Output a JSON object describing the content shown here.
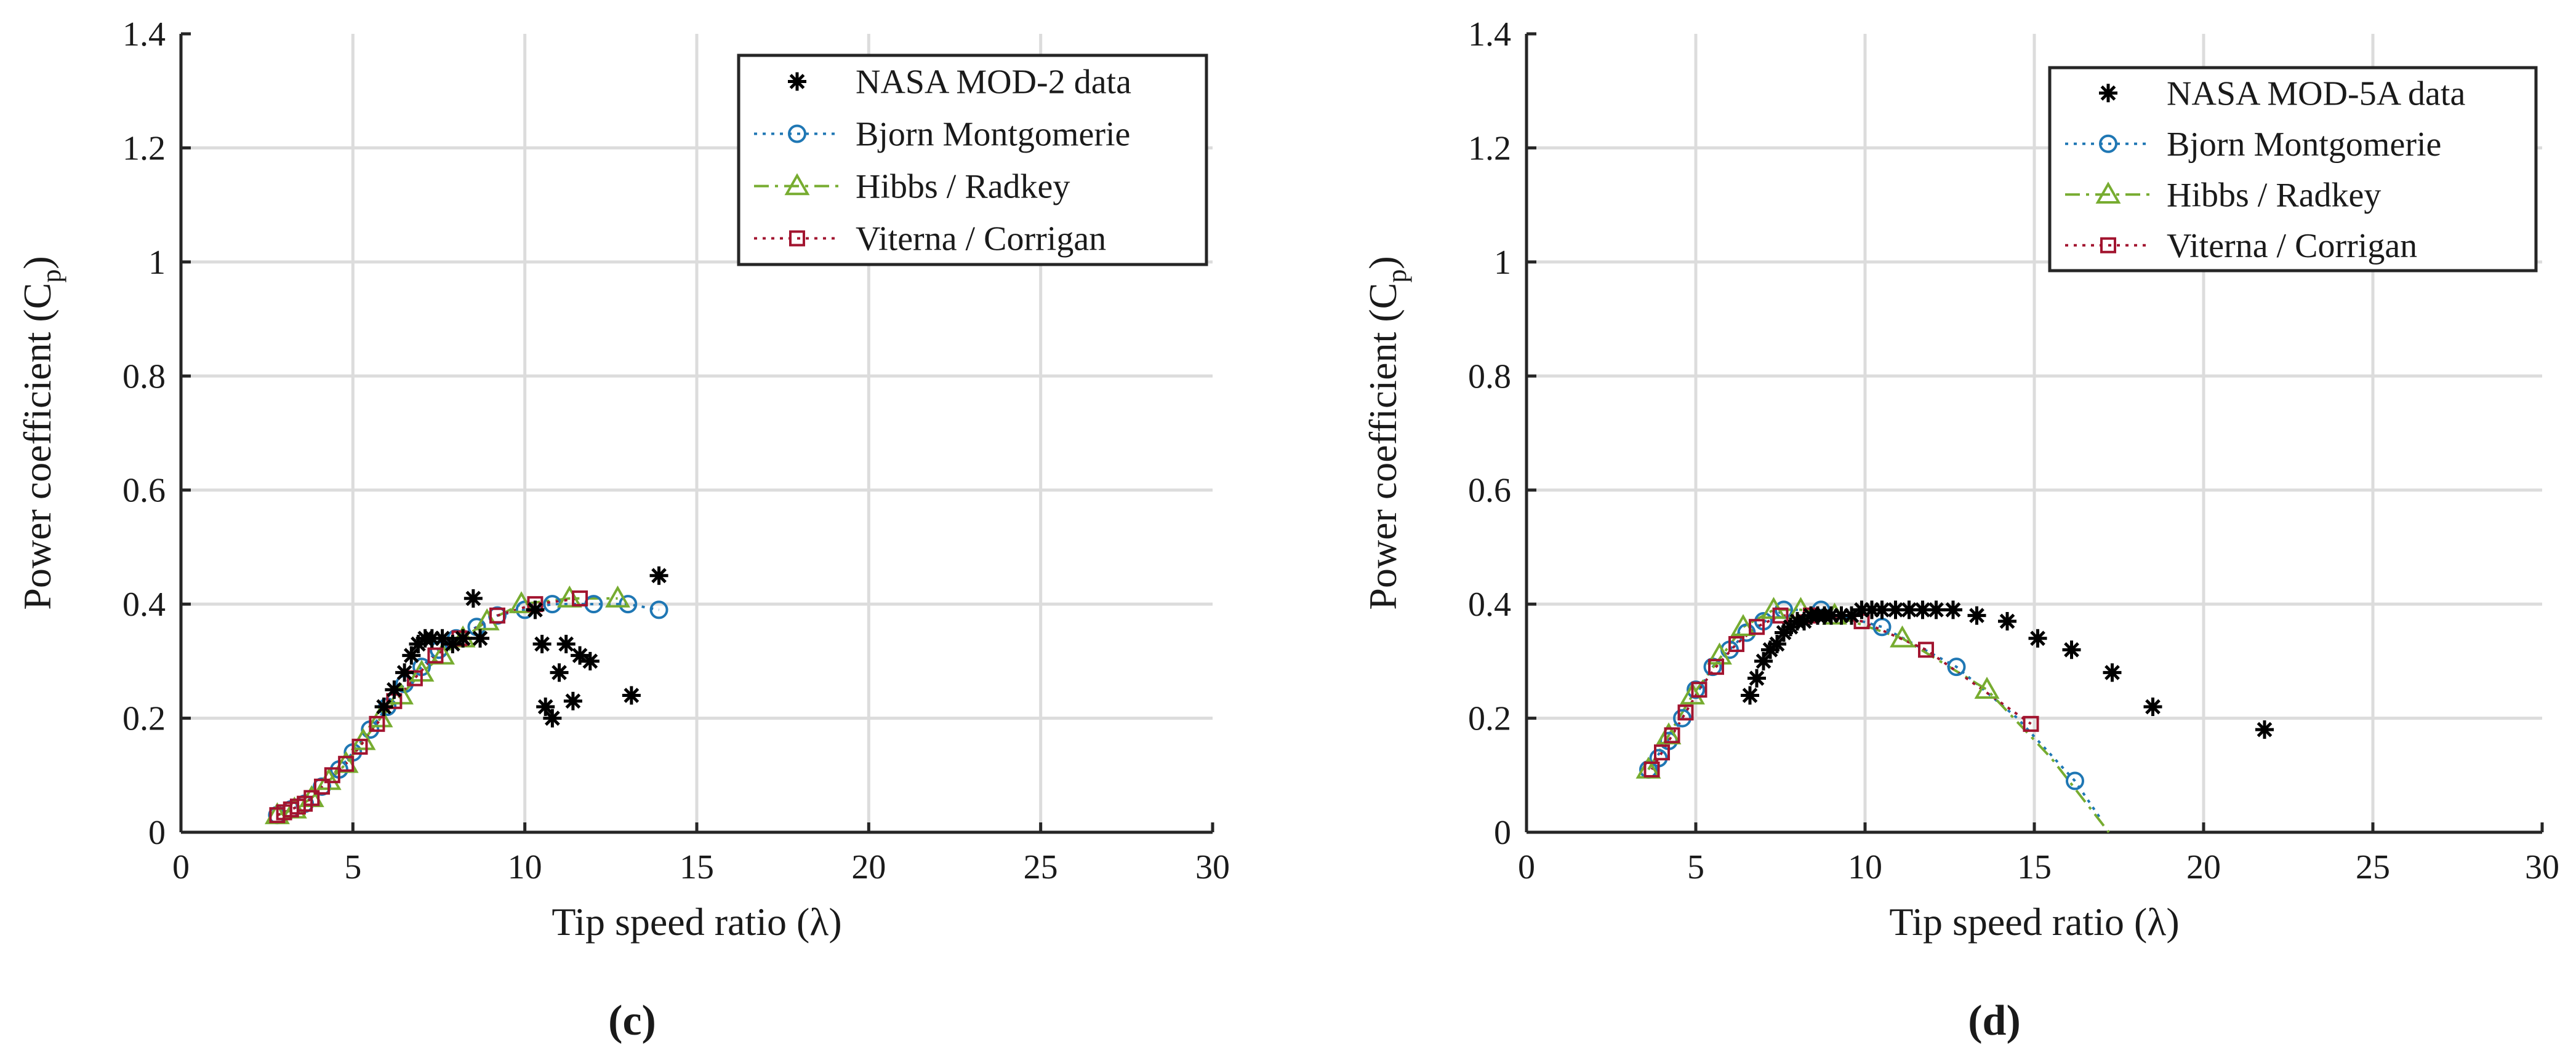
{
  "figure": {
    "panel_labels": [
      "(c)",
      "(d)"
    ]
  },
  "chart_data": [
    {
      "type": "scatter",
      "panel": "(c)",
      "title": "",
      "xlabel": "Tip speed ratio (λ)",
      "ylabel_main": "Power coefficient (C",
      "ylabel_sub": "p",
      "ylabel_close": ")",
      "xlim": [
        0,
        30
      ],
      "ylim": [
        0,
        1.4
      ],
      "xticks": [
        0,
        5,
        10,
        15,
        20,
        25,
        30
      ],
      "yticks": [
        0,
        0.2,
        0.4,
        0.6,
        0.8,
        1,
        1.2,
        1.4
      ],
      "xtick_labels": [
        "0",
        "5",
        "10",
        "15",
        "20",
        "25",
        "30"
      ],
      "ytick_labels": [
        "0",
        "0.2",
        "0.4",
        "0.6",
        "0.8",
        "1",
        "1.2",
        "1.4"
      ],
      "grid": true,
      "legend_position": "top-right",
      "series": [
        {
          "name": "NASA MOD-2 data",
          "marker": "asterisk",
          "color": "#000000",
          "line": "none",
          "x": [
            5.9,
            6.2,
            6.5,
            6.7,
            6.9,
            7.1,
            7.3,
            7.6,
            7.9,
            8.2,
            8.5,
            8.7,
            10.3,
            10.5,
            10.6,
            10.8,
            11.0,
            11.2,
            11.4,
            11.6,
            11.9,
            13.1,
            13.9
          ],
          "y": [
            0.22,
            0.25,
            0.28,
            0.31,
            0.33,
            0.34,
            0.34,
            0.34,
            0.33,
            0.34,
            0.41,
            0.34,
            0.39,
            0.33,
            0.22,
            0.2,
            0.28,
            0.33,
            0.23,
            0.31,
            0.3,
            0.24,
            0.45
          ]
        },
        {
          "name": "Bjorn Montgomerie",
          "marker": "circle",
          "color": "#1f77b4",
          "line": "dotted",
          "x": [
            2.8,
            3.2,
            3.6,
            4.1,
            4.6,
            5.0,
            5.5,
            6.0,
            6.5,
            7.0,
            7.5,
            8.0,
            8.6,
            9.2,
            10.0,
            10.8,
            12.0,
            13.0,
            13.9
          ],
          "y": [
            0.03,
            0.04,
            0.05,
            0.08,
            0.11,
            0.14,
            0.18,
            0.22,
            0.26,
            0.29,
            0.32,
            0.34,
            0.36,
            0.38,
            0.39,
            0.4,
            0.4,
            0.4,
            0.39
          ]
        },
        {
          "name": "Hibbs / Radkey",
          "marker": "triangle",
          "color": "#77ac30",
          "line": "dashdot",
          "x": [
            2.8,
            3.3,
            3.8,
            4.3,
            4.8,
            5.3,
            5.8,
            6.4,
            7.0,
            7.6,
            8.2,
            8.9,
            9.9,
            11.3,
            12.7
          ],
          "y": [
            0.03,
            0.04,
            0.06,
            0.09,
            0.12,
            0.16,
            0.2,
            0.24,
            0.28,
            0.31,
            0.34,
            0.37,
            0.4,
            0.41,
            0.41
          ]
        },
        {
          "name": "Viterna / Corrigan",
          "marker": "square",
          "color": "#a2142f",
          "line": "dotted",
          "x": [
            2.8,
            3.0,
            3.2,
            3.4,
            3.6,
            3.8,
            4.1,
            4.4,
            4.8,
            5.2,
            5.7,
            6.2,
            6.8,
            7.4,
            8.1,
            9.2,
            10.3,
            11.6
          ],
          "y": [
            0.03,
            0.035,
            0.04,
            0.045,
            0.05,
            0.06,
            0.08,
            0.1,
            0.12,
            0.15,
            0.19,
            0.23,
            0.27,
            0.31,
            0.34,
            0.38,
            0.4,
            0.41
          ]
        }
      ]
    },
    {
      "type": "scatter",
      "panel": "(d)",
      "title": "",
      "xlabel": "Tip speed ratio (λ)",
      "ylabel_main": "Power coefficient (C",
      "ylabel_sub": "p",
      "ylabel_close": ")",
      "xlim": [
        0,
        30
      ],
      "ylim": [
        0,
        1.4
      ],
      "xticks": [
        0,
        5,
        10,
        15,
        20,
        25,
        30
      ],
      "yticks": [
        0,
        0.2,
        0.4,
        0.6,
        0.8,
        1,
        1.2,
        1.4
      ],
      "xtick_labels": [
        "0",
        "5",
        "10",
        "15",
        "20",
        "25",
        "30"
      ],
      "ytick_labels": [
        "0",
        "0.2",
        "0.4",
        "0.6",
        "0.8",
        "1",
        "1.2",
        "1.4"
      ],
      "grid": true,
      "legend_position": "top-right",
      "series": [
        {
          "name": "NASA MOD-5A data",
          "marker": "asterisk",
          "color": "#000000",
          "line": "none",
          "x": [
            6.6,
            6.8,
            7.0,
            7.2,
            7.4,
            7.6,
            7.8,
            8.0,
            8.2,
            8.4,
            8.6,
            8.8,
            9.0,
            9.3,
            9.6,
            9.9,
            10.2,
            10.5,
            10.9,
            11.3,
            11.7,
            12.1,
            12.6,
            13.3,
            14.2,
            15.1,
            16.1,
            17.3,
            18.5,
            21.8
          ],
          "y": [
            0.24,
            0.27,
            0.3,
            0.32,
            0.33,
            0.35,
            0.36,
            0.37,
            0.37,
            0.38,
            0.38,
            0.38,
            0.38,
            0.38,
            0.38,
            0.39,
            0.39,
            0.39,
            0.39,
            0.39,
            0.39,
            0.39,
            0.39,
            0.38,
            0.37,
            0.34,
            0.32,
            0.28,
            0.22,
            0.18
          ]
        },
        {
          "name": "Bjorn Montgomerie",
          "marker": "circle",
          "color": "#1f77b4",
          "line": "dotted",
          "x": [
            3.6,
            3.9,
            4.2,
            4.6,
            5.0,
            5.5,
            6.0,
            6.5,
            7.0,
            7.6,
            8.7,
            10.5,
            12.7,
            16.2
          ],
          "y": [
            0.11,
            0.13,
            0.16,
            0.2,
            0.25,
            0.29,
            0.32,
            0.35,
            0.37,
            0.39,
            0.39,
            0.36,
            0.29,
            0.09
          ],
          "curve_x": [
            3.6,
            4.5,
            5.5,
            6.5,
            7.6,
            8.7,
            10.5,
            12.7,
            14.5,
            16.2,
            17.0
          ],
          "curve_y": [
            0.11,
            0.19,
            0.29,
            0.35,
            0.39,
            0.39,
            0.36,
            0.29,
            0.2,
            0.09,
            0.02
          ]
        },
        {
          "name": "Hibbs / Radkey",
          "marker": "triangle",
          "color": "#77ac30",
          "line": "dashdot",
          "x": [
            3.6,
            4.2,
            4.9,
            5.7,
            6.4,
            7.3,
            8.1,
            9.1,
            11.1,
            13.6
          ],
          "y": [
            0.11,
            0.17,
            0.24,
            0.31,
            0.36,
            0.39,
            0.39,
            0.38,
            0.34,
            0.25
          ],
          "curve_x": [
            3.6,
            4.9,
            6.4,
            7.3,
            8.1,
            9.1,
            11.1,
            13.6,
            15.5,
            17.2
          ],
          "curve_y": [
            0.11,
            0.24,
            0.36,
            0.39,
            0.39,
            0.38,
            0.34,
            0.25,
            0.13,
            0.0
          ]
        },
        {
          "name": "Viterna / Corrigan",
          "marker": "square",
          "color": "#a2142f",
          "line": "dotted",
          "x": [
            3.7,
            4.0,
            4.3,
            4.7,
            5.1,
            5.6,
            6.2,
            6.8,
            7.5,
            8.4,
            9.9,
            11.8,
            14.9
          ],
          "y": [
            0.11,
            0.14,
            0.17,
            0.21,
            0.25,
            0.29,
            0.33,
            0.36,
            0.38,
            0.38,
            0.37,
            0.32,
            0.19
          ]
        }
      ]
    }
  ]
}
